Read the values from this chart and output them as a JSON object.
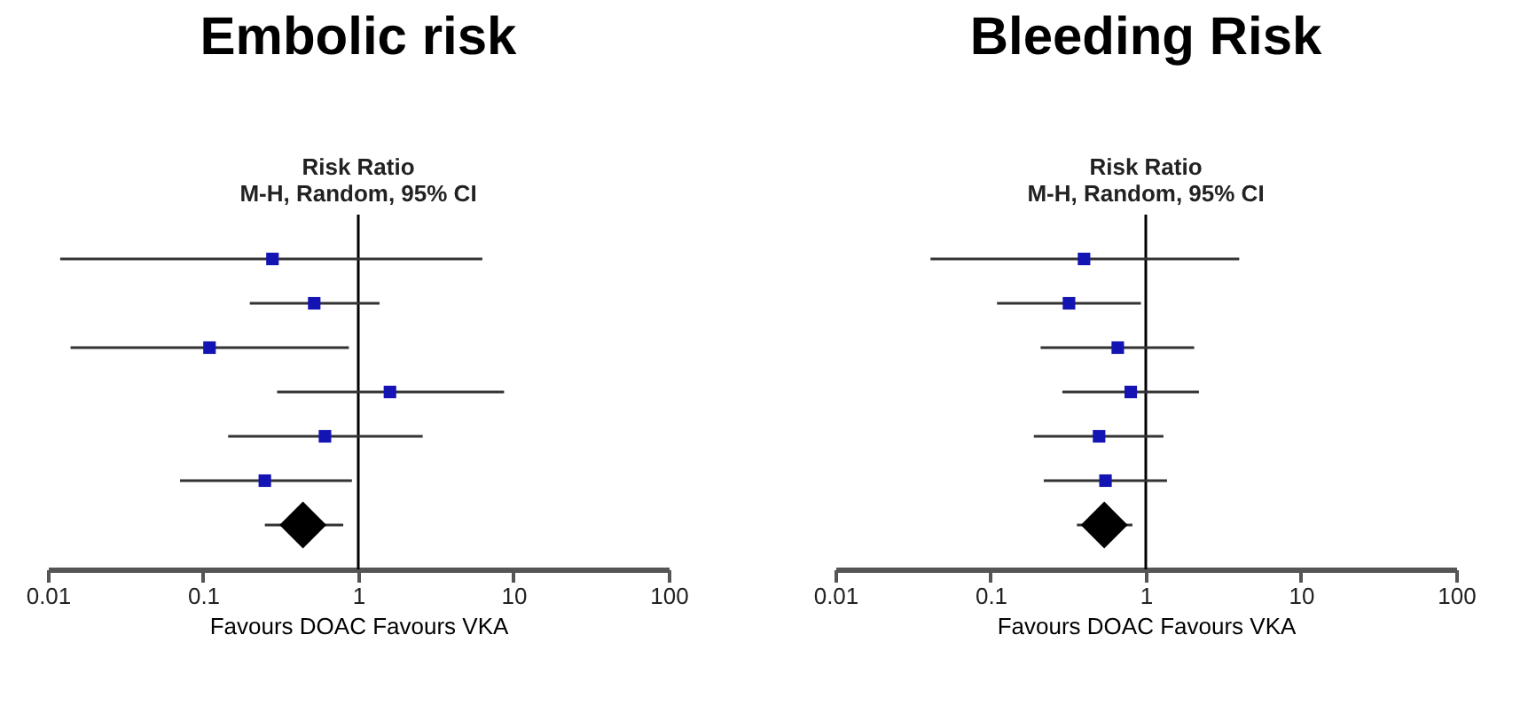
{
  "chart_data": [
    {
      "type": "scatter",
      "title": "Embolic risk",
      "subtitle": "Risk Ratio",
      "annotations": [
        "M-H, Random, 95% CI"
      ],
      "xlabel": "Favours DOAC  Favours VKA",
      "orientation": "horizontal",
      "log": "x",
      "xlim": [
        0.01,
        100
      ],
      "xticks": [
        0.01,
        0.1,
        1,
        10,
        100
      ],
      "categories": [
        null,
        null,
        null,
        null,
        null,
        null,
        null
      ],
      "grid": false,
      "legend": false,
      "ref_lines": [
        {
          "axis": "x",
          "value": 1,
          "color": "#000000"
        }
      ],
      "series": [
        {
          "type": "scatter",
          "marker": "square",
          "color": "#1414b4",
          "values": [
            0.28,
            0.52,
            0.11,
            1.6,
            0.61,
            0.25,
            null
          ],
          "errors": [
            [
              0.012,
              6.3
            ],
            [
              0.2,
              1.37
            ],
            [
              0.014,
              0.87
            ],
            [
              0.3,
              8.7
            ],
            [
              0.145,
              2.6
            ],
            [
              0.071,
              0.91
            ],
            null
          ]
        },
        {
          "type": "scatter",
          "marker": "diamond",
          "color": "#000000",
          "values": [
            null,
            null,
            null,
            null,
            null,
            null,
            0.44
          ],
          "errors": [
            null,
            null,
            null,
            null,
            null,
            null,
            [
              0.25,
              0.8
            ]
          ]
        }
      ]
    },
    {
      "type": "scatter",
      "title": "Bleeding Risk",
      "subtitle": "Risk Ratio",
      "annotations": [
        "M-H, Random, 95% CI"
      ],
      "xlabel": "Favours DOAC  Favours VKA",
      "orientation": "horizontal",
      "log": "x",
      "xlim": [
        0.01,
        100
      ],
      "xticks": [
        0.01,
        0.1,
        1,
        10,
        100
      ],
      "categories": [
        null,
        null,
        null,
        null,
        null,
        null,
        null
      ],
      "grid": false,
      "legend": false,
      "ref_lines": [
        {
          "axis": "x",
          "value": 1,
          "color": "#000000"
        }
      ],
      "series": [
        {
          "type": "scatter",
          "marker": "square",
          "color": "#1414b4",
          "values": [
            0.4,
            0.32,
            0.66,
            0.8,
            0.5,
            0.55,
            null
          ],
          "errors": [
            [
              0.041,
              4.0
            ],
            [
              0.11,
              0.93
            ],
            [
              0.21,
              2.05
            ],
            [
              0.29,
              2.2
            ],
            [
              0.19,
              1.3
            ],
            [
              0.22,
              1.37
            ],
            null
          ]
        },
        {
          "type": "scatter",
          "marker": "diamond",
          "color": "#000000",
          "values": [
            null,
            null,
            null,
            null,
            null,
            null,
            0.54
          ],
          "errors": [
            null,
            null,
            null,
            null,
            null,
            null,
            [
              0.36,
              0.82
            ]
          ]
        }
      ]
    }
  ]
}
